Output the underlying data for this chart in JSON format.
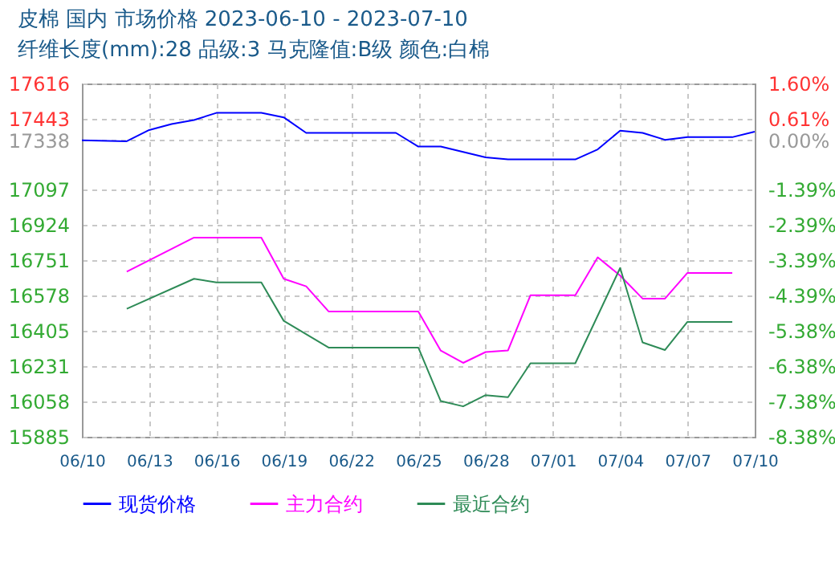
{
  "chart_data": {
    "type": "line",
    "title": "皮棉 国内 市场价格 2023-06-10 - 2023-07-10",
    "subtitle": "纤维长度(mm):28 品级:3 马克隆值:B级 颜色:白棉",
    "xlim": [
      "2023-06-10",
      "2023-07-10"
    ],
    "xticks": [
      {
        "value": "2023-06-10",
        "label": "06/10"
      },
      {
        "value": "2023-06-13",
        "label": "06/13"
      },
      {
        "value": "2023-06-16",
        "label": "06/16"
      },
      {
        "value": "2023-06-19",
        "label": "06/19"
      },
      {
        "value": "2023-06-22",
        "label": "06/22"
      },
      {
        "value": "2023-06-25",
        "label": "06/25"
      },
      {
        "value": "2023-06-28",
        "label": "06/28"
      },
      {
        "value": "2023-07-01",
        "label": "07/01"
      },
      {
        "value": "2023-07-04",
        "label": "07/04"
      },
      {
        "value": "2023-07-07",
        "label": "07/07"
      },
      {
        "value": "2023-07-10",
        "label": "07/10"
      }
    ],
    "ylim": [
      15885,
      17616
    ],
    "yticks": [
      15885,
      16058,
      16231,
      16405,
      16578,
      16751,
      16924,
      17097,
      17338,
      17443,
      17616
    ],
    "y2lim": [
      -8.38,
      1.6
    ],
    "y2ticks": [
      {
        "value": -8.38,
        "label": "-8.38%"
      },
      {
        "value": -7.38,
        "label": "-7.38%"
      },
      {
        "value": -6.38,
        "label": "-6.38%"
      },
      {
        "value": -5.38,
        "label": "-5.38%"
      },
      {
        "value": -4.39,
        "label": "-4.39%"
      },
      {
        "value": -3.39,
        "label": "-3.39%"
      },
      {
        "value": -2.39,
        "label": "-2.39%"
      },
      {
        "value": -1.39,
        "label": "-1.39%"
      },
      {
        "value": 0,
        "label": "0.00%"
      },
      {
        "value": 0.61,
        "label": "0.61%"
      },
      {
        "value": 1.6,
        "label": "1.60%"
      }
    ],
    "grid": true,
    "legend": "bottom",
    "series": [
      {
        "name": "现货价格",
        "color": "#0000ff",
        "x": [
          "2023-06-10",
          "2023-06-12",
          "2023-06-13",
          "2023-06-14",
          "2023-06-15",
          "2023-06-16",
          "2023-06-18",
          "2023-06-19",
          "2023-06-20",
          "2023-06-24",
          "2023-06-25",
          "2023-06-26",
          "2023-06-28",
          "2023-06-29",
          "2023-07-02",
          "2023-07-03",
          "2023-07-04",
          "2023-07-05",
          "2023-07-06",
          "2023-07-07",
          "2023-07-09",
          "2023-07-10"
        ],
        "values": [
          17338,
          17333,
          17388,
          17417,
          17437,
          17472,
          17472,
          17450,
          17374,
          17374,
          17307,
          17307,
          17254,
          17244,
          17244,
          17293,
          17385,
          17374,
          17340,
          17353,
          17353,
          17380
        ]
      },
      {
        "name": "主力合约",
        "color": "#ff00ff",
        "x": [
          "2023-06-12",
          "2023-06-15",
          "2023-06-18",
          "2023-06-19",
          "2023-06-20",
          "2023-06-21",
          "2023-06-25",
          "2023-06-26",
          "2023-06-27",
          "2023-06-28",
          "2023-06-29",
          "2023-06-30",
          "2023-07-02",
          "2023-07-03",
          "2023-07-04",
          "2023-07-05",
          "2023-07-06",
          "2023-07-07",
          "2023-07-09"
        ],
        "values": [
          16694,
          16861,
          16861,
          16659,
          16622,
          16499,
          16499,
          16307,
          16247,
          16300,
          16308,
          16578,
          16578,
          16764,
          16675,
          16562,
          16562,
          16688,
          16688
        ]
      },
      {
        "name": "最近合约",
        "color": "#2e8b57",
        "x": [
          "2023-06-12",
          "2023-06-15",
          "2023-06-16",
          "2023-06-18",
          "2023-06-19",
          "2023-06-21",
          "2023-06-25",
          "2023-06-26",
          "2023-06-27",
          "2023-06-28",
          "2023-06-29",
          "2023-06-30",
          "2023-07-02",
          "2023-07-04",
          "2023-07-05",
          "2023-07-06",
          "2023-07-07",
          "2023-07-09"
        ],
        "values": [
          16512,
          16659,
          16641,
          16641,
          16453,
          16322,
          16322,
          16060,
          16034,
          16089,
          16079,
          16245,
          16245,
          16712,
          16347,
          16310,
          16448,
          16448
        ]
      }
    ]
  }
}
